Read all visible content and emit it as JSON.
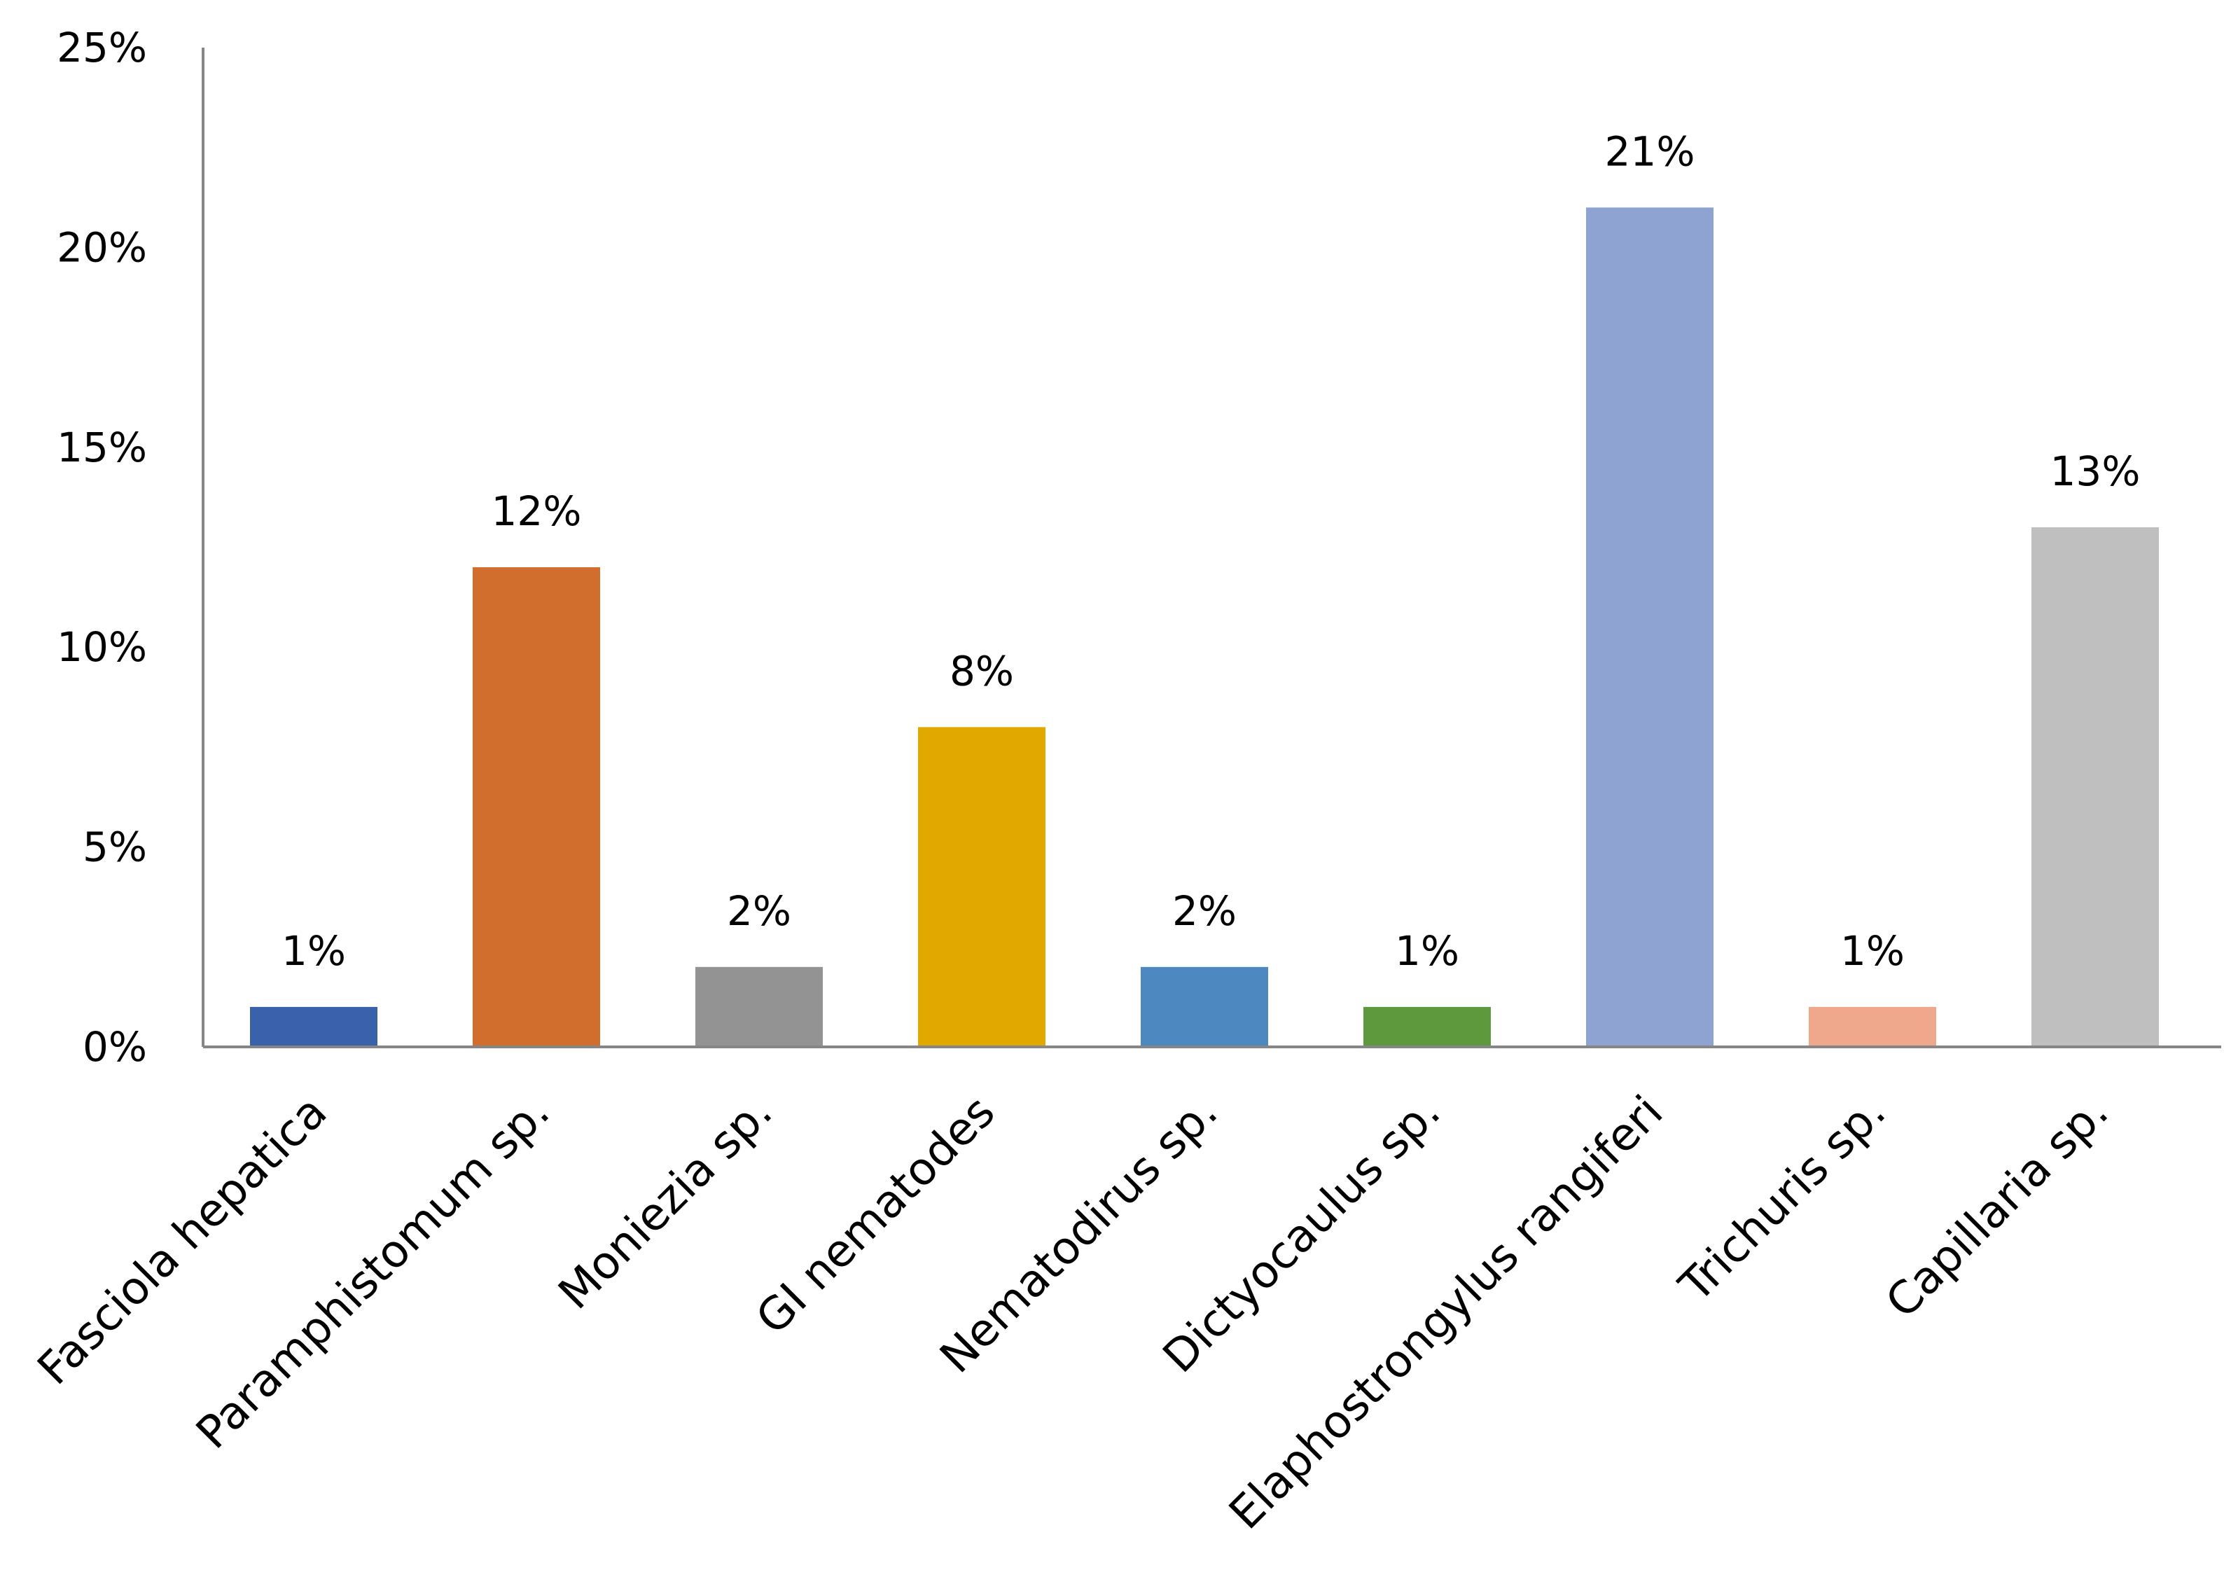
{
  "chart_data": {
    "type": "bar",
    "title": "",
    "xlabel": "",
    "ylabel": "",
    "categories": [
      "Fasciola hepatica",
      "Paramphistomum sp.",
      "Moniezia sp.",
      "GI nematodes",
      "Nematodirus sp.",
      "Dictyocaulus sp.",
      "Elaphostrongylus rangiferi",
      "Trichuris sp.",
      "Capillaria sp."
    ],
    "values": [
      1,
      12,
      2,
      8,
      2,
      1,
      21,
      1,
      13
    ],
    "data_labels": [
      "1%",
      "12%",
      "2%",
      "8%",
      "2%",
      "1%",
      "21%",
      "1%",
      "13%"
    ],
    "colors": [
      "#3a62ac",
      "#d26e2d",
      "#939393",
      "#e1a800",
      "#4d89c0",
      "#5e9a3d",
      "#8fa3d3",
      "#efa88c",
      "#bfbfbf"
    ],
    "ylim": [
      0,
      25
    ],
    "yticks": [
      0,
      5,
      10,
      15,
      20,
      25
    ],
    "ytick_labels": [
      "0%",
      "5%",
      "10%",
      "15%",
      "20%",
      "25%"
    ],
    "grid": false,
    "legend": "none"
  }
}
